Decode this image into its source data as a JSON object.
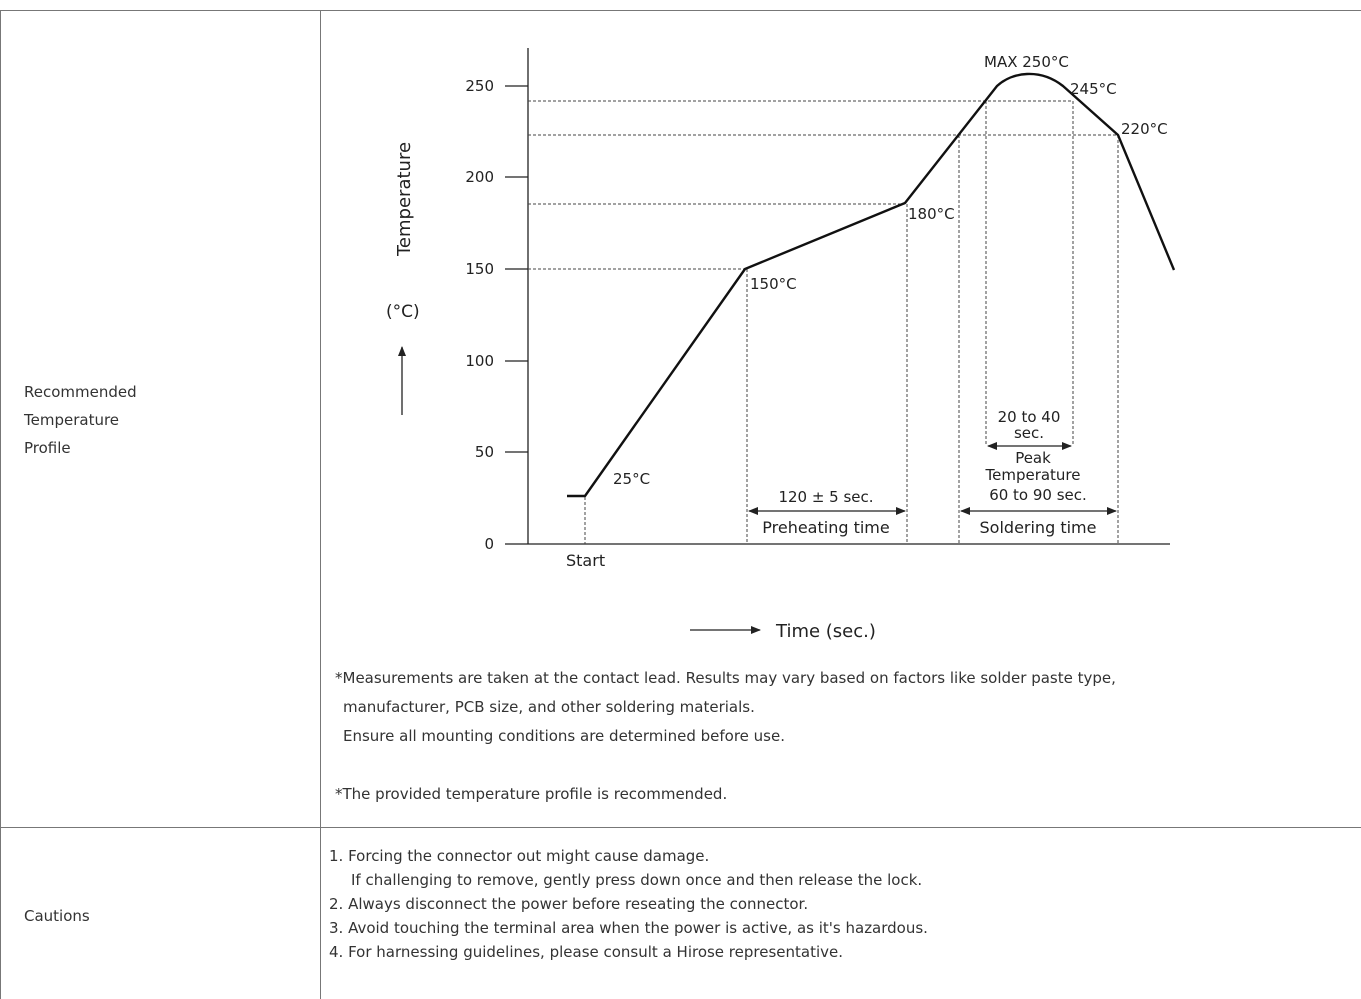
{
  "rows": [
    {
      "label_lines": [
        "Recommended",
        "Temperature",
        "Profile"
      ]
    },
    {
      "label_lines": [
        "Cautions"
      ]
    }
  ],
  "chart_data": {
    "type": "line",
    "title": "",
    "xlabel": "Time (sec.)",
    "ylabel": "Temperature",
    "ylabel_unit": "(°C)",
    "ylim": [
      0,
      260
    ],
    "yticks": [
      "0",
      "50",
      "100",
      "150",
      "200",
      "250"
    ],
    "x_start_label": "Start",
    "series": [
      {
        "x": [
          0,
          1,
          2,
          3,
          4,
          5,
          6,
          7
        ],
        "y": [
          25,
          25,
          150,
          180,
          245,
          250,
          245,
          220
        ],
        "note": ""
      }
    ],
    "point_labels": [
      "25°C",
      "150°C",
      "180°C",
      "MAX 250°C",
      "245°C",
      "220°C"
    ],
    "annotations": {
      "preheat_duration": "120 ± 5 sec.",
      "preheat_label": "Preheating time",
      "peak_duration_line1": "20 to 40",
      "peak_duration_line2": "sec.",
      "peak_label_line1": "Peak",
      "peak_label_line2": "Temperature",
      "soldering_duration": "60 to 90 sec.",
      "soldering_label": "Soldering time"
    }
  },
  "notes": [
    "*Measurements are taken at the contact lead. Results may vary based on factors like solder paste type,",
    "manufacturer, PCB size, and other soldering materials.",
    "Ensure all mounting conditions are determined before use.",
    "*The provided temperature profile is recommended."
  ],
  "cautions": [
    "1. Forcing the connector out might cause damage.",
    "If challenging to remove, gently press down once and then release the lock.",
    "2. Always disconnect the power before reseating the connector.",
    "3. Avoid touching the terminal area when the power is active, as it's hazardous.",
    "4. For harnessing guidelines, please consult a Hirose representative."
  ]
}
